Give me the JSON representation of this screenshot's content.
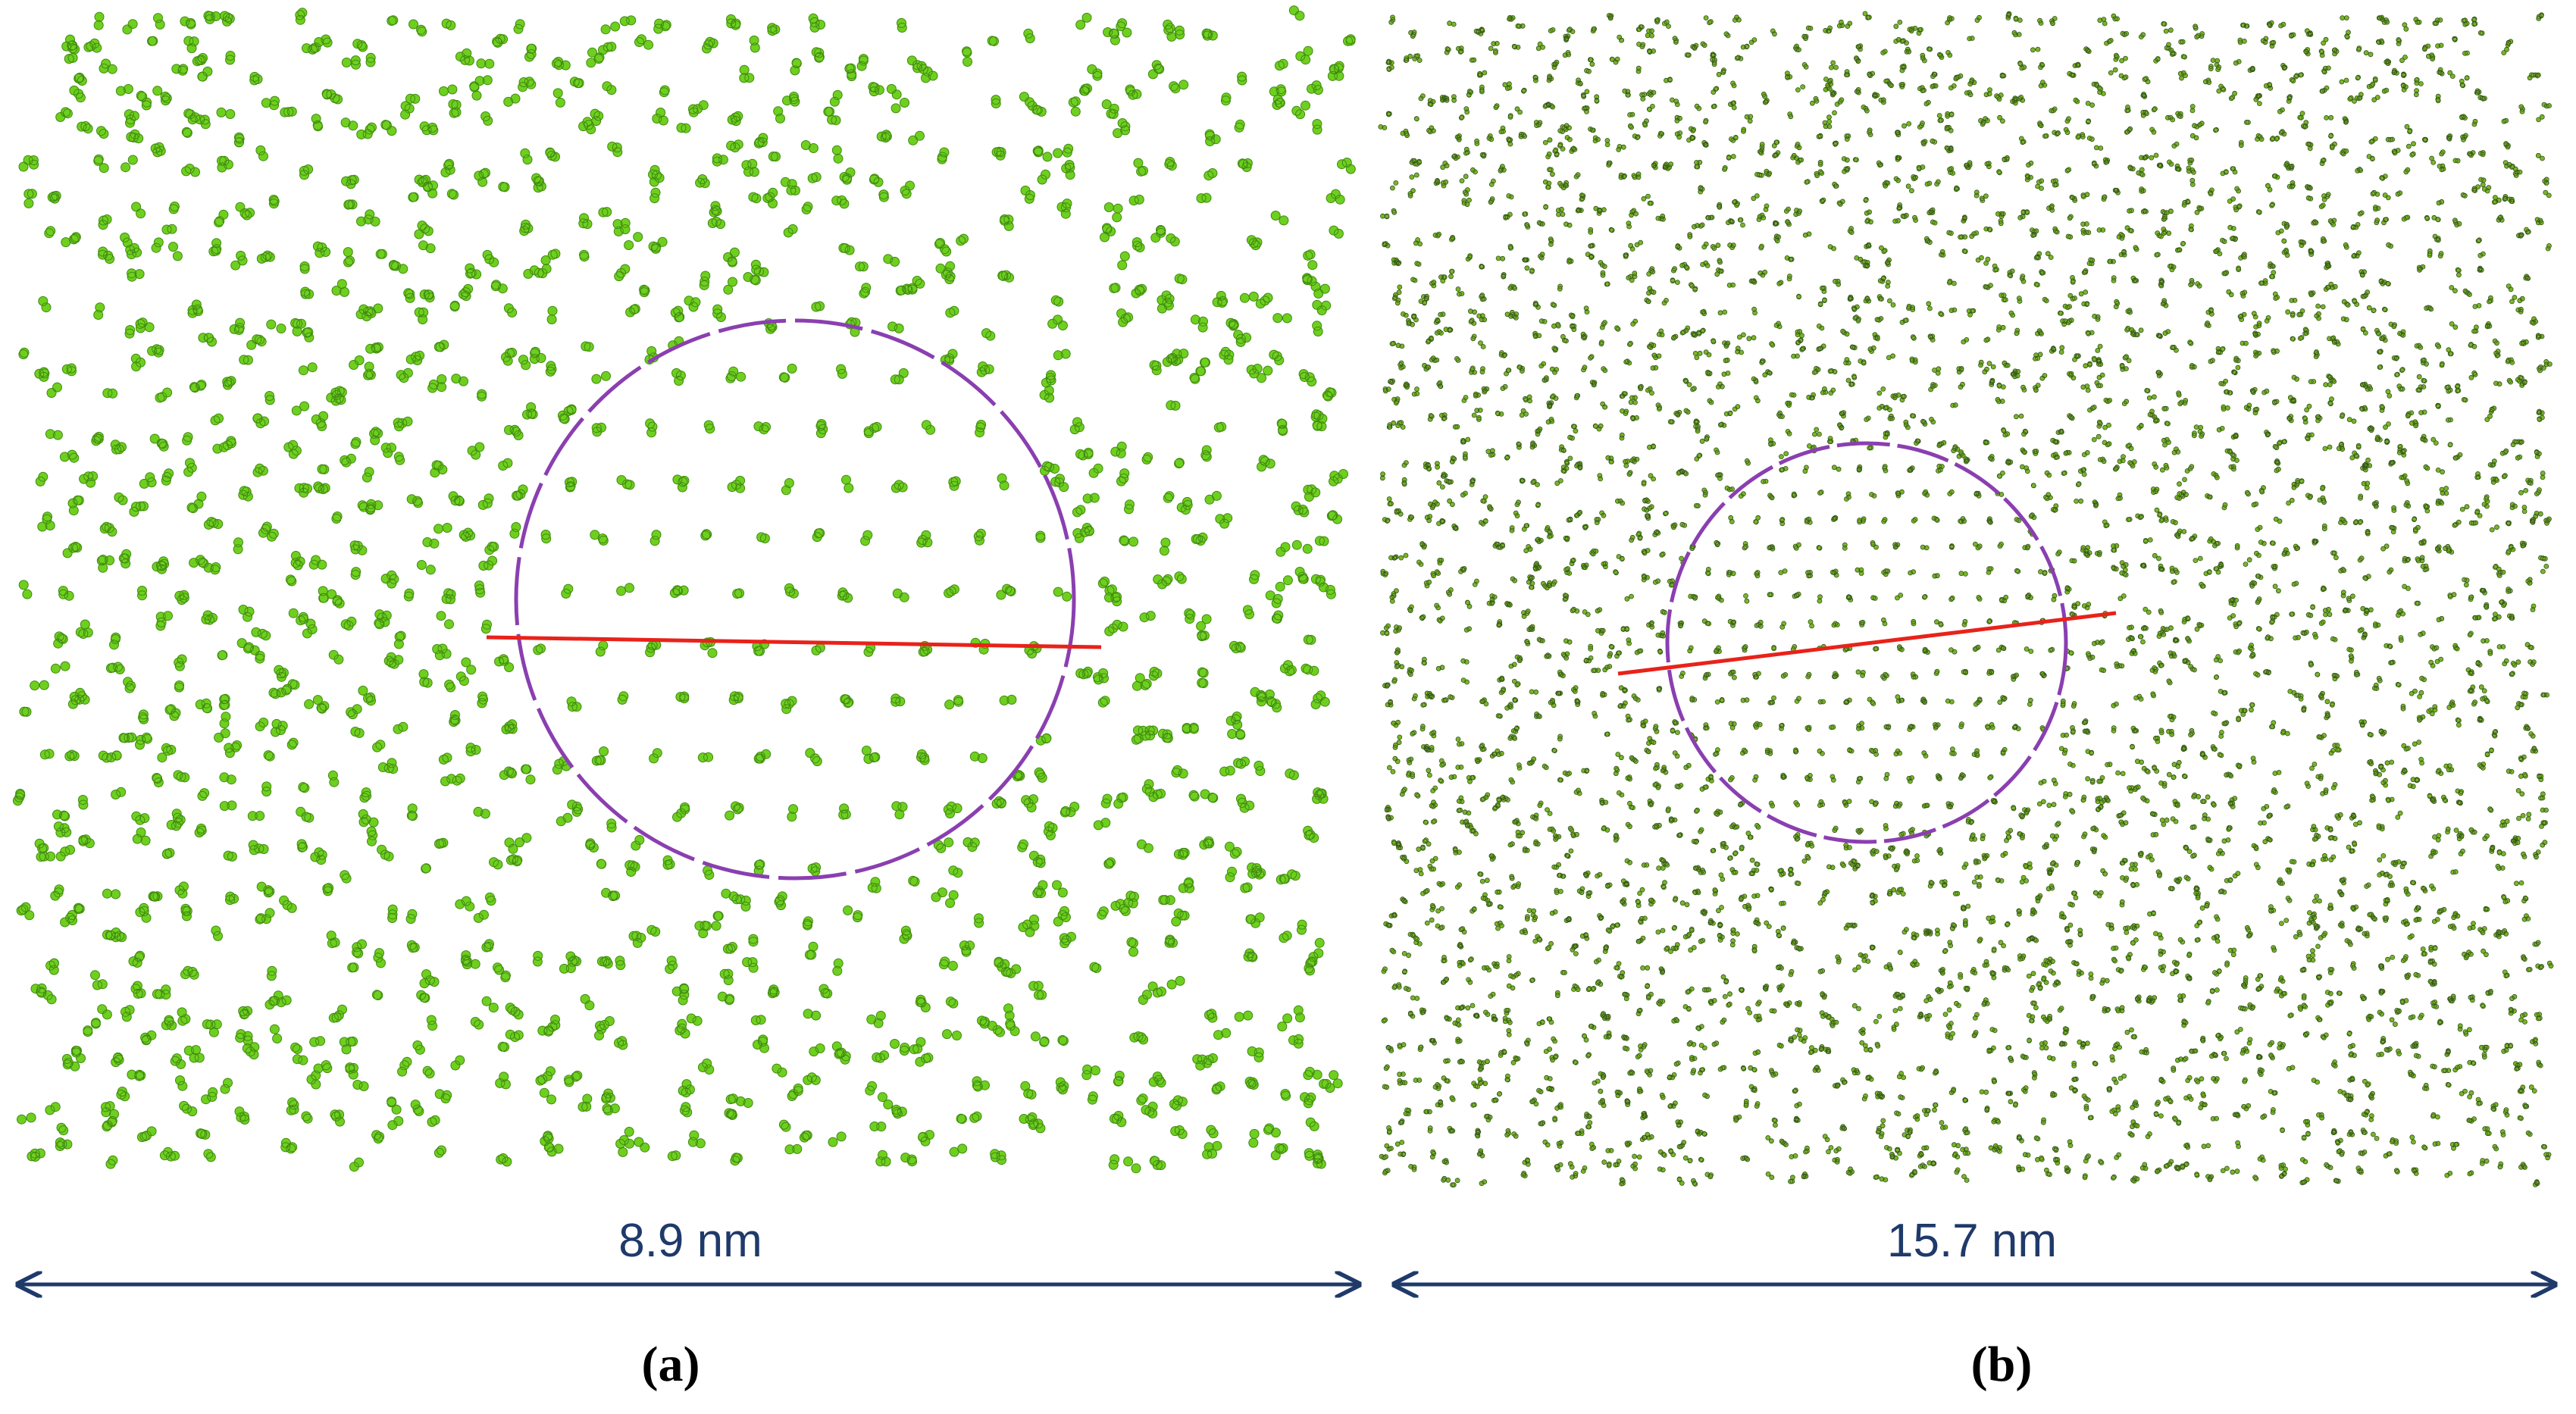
{
  "panels": [
    {
      "scale_label": "8.9 nm",
      "caption": "(a)"
    },
    {
      "scale_label": "15.7 nm",
      "caption": "(b)"
    }
  ]
}
